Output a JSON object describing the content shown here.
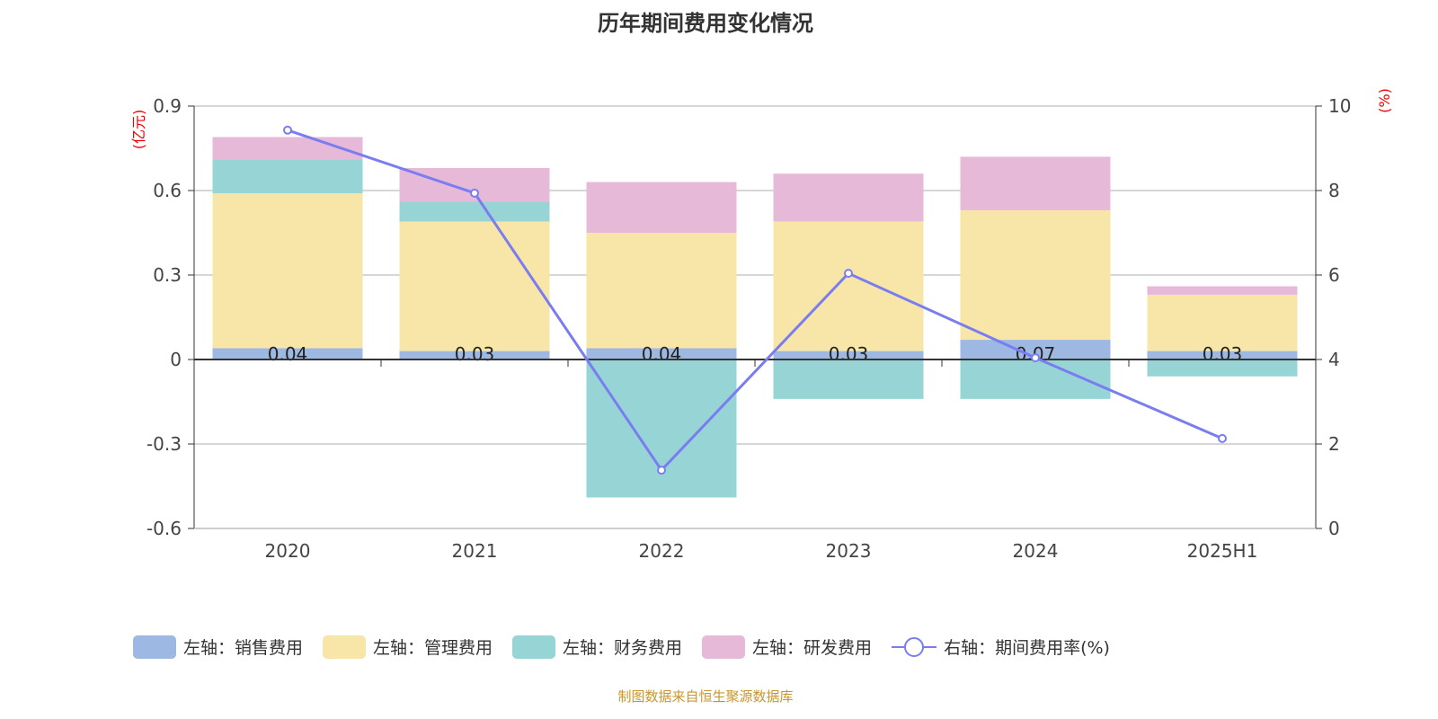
{
  "chart_data": {
    "type": "bar",
    "title": "历年期间费用变化情况",
    "categories": [
      "2020",
      "2021",
      "2022",
      "2023",
      "2024",
      "2025H1"
    ],
    "left_axis": {
      "unit": "(亿元)",
      "ylim": [
        -0.6,
        0.9
      ],
      "ticks": [
        "-0.6",
        "-0.3",
        "0",
        "0.3",
        "0.6",
        "0.9"
      ]
    },
    "right_axis": {
      "unit": "(%)",
      "ylim": [
        0,
        10
      ],
      "ticks": [
        "0",
        "2",
        "4",
        "6",
        "8",
        "10"
      ]
    },
    "series": [
      {
        "name": "左轴：销售费用",
        "type": "bar",
        "stack": true,
        "color": "#9db8e2",
        "values": [
          0.04,
          0.03,
          0.04,
          0.03,
          0.07,
          0.03
        ],
        "labels": [
          "0.04",
          "0.03",
          "0.04",
          "0.03",
          "0.07",
          "0.03"
        ]
      },
      {
        "name": "左轴：管理费用",
        "type": "bar",
        "stack": true,
        "color": "#f7e6a8",
        "values": [
          0.55,
          0.46,
          0.41,
          0.46,
          0.46,
          0.2
        ]
      },
      {
        "name": "左轴：财务费用",
        "type": "bar",
        "stack": true,
        "color": "#97d4d6",
        "values": [
          0.12,
          0.07,
          -0.49,
          -0.14,
          -0.14,
          -0.06
        ]
      },
      {
        "name": "左轴：研发费用",
        "type": "bar",
        "stack": true,
        "color": "#e7b9d8",
        "values": [
          0.08,
          0.12,
          0.18,
          0.17,
          0.19,
          0.03
        ]
      },
      {
        "name": "右轴：期间费用率(%)",
        "type": "line",
        "axis": "right",
        "color": "#7a7df0",
        "values": [
          9.43,
          7.94,
          1.38,
          6.04,
          4.04,
          2.13
        ]
      }
    ],
    "grid": true,
    "legend_position": "bottom"
  },
  "source": "制图数据来自恒生聚源数据库"
}
